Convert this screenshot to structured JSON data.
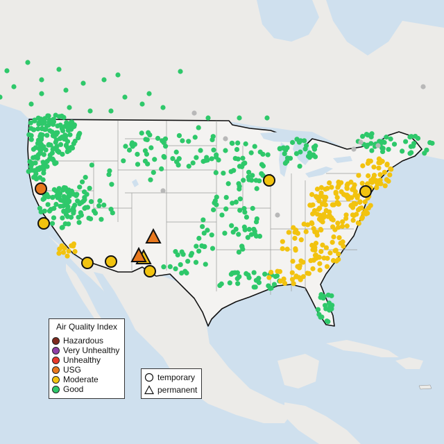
{
  "map": {
    "colors": {
      "water": "#cfe0ee",
      "land": "#ecebe8",
      "us_land": "#f4f3f1",
      "state_line": "#9a9a9a",
      "border": "#111111",
      "hazardous": "#7e2a1e",
      "very_unhealthy": "#8e3fa6",
      "unhealthy": "#e8392b",
      "usg": "#e8781e",
      "moderate": "#f2c30f",
      "good": "#2ec86a",
      "no_data": "#b8b8b8"
    },
    "sensor_shapes": [
      "circle",
      "triangle"
    ]
  },
  "legend": {
    "title": "Air Quality Index",
    "items": [
      {
        "label": "Hazardous",
        "color": "#7e2a1e"
      },
      {
        "label": "Very Unhealthy",
        "color": "#8e3fa6"
      },
      {
        "label": "Unhealthy",
        "color": "#e8392b"
      },
      {
        "label": "USG",
        "color": "#e8781e"
      },
      {
        "label": "Moderate",
        "color": "#f2c30f"
      },
      {
        "label": "Good",
        "color": "#2ec86a"
      }
    ]
  },
  "shape_legend": {
    "temporary": "temporary",
    "permanent": "permanent"
  }
}
